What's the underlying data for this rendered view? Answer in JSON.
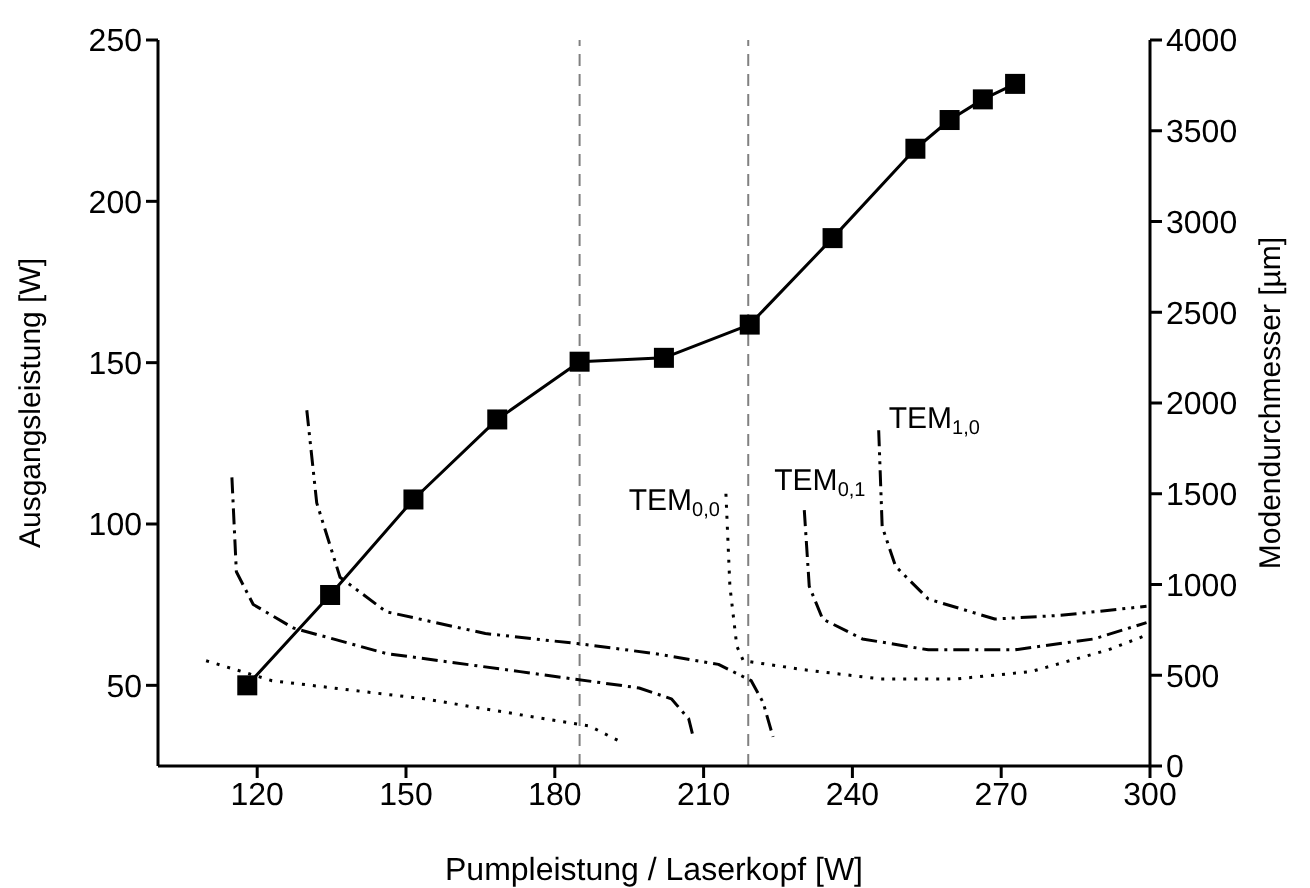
{
  "chart_data": {
    "type": "line",
    "xlabel": "Pumpleistung / Laserkopf [W]",
    "ylabel": "Ausgangsleistung [W]",
    "y2label": "Modendurchmesser [µm]",
    "xlim": [
      100,
      300
    ],
    "xticks": [
      120,
      150,
      180,
      210,
      240,
      270,
      300
    ],
    "ylim": [
      25,
      250
    ],
    "yticks": [
      50,
      100,
      150,
      200,
      250
    ],
    "y2lim": [
      0,
      4000
    ],
    "y2ticks": [
      0,
      500,
      1000,
      1500,
      2000,
      2500,
      3000,
      3500,
      4000
    ],
    "series": [
      {
        "color": "#000000",
        "marker": "square",
        "line_style": "solid",
        "x": [
          118,
          134.7,
          151.5,
          168.4,
          185,
          202,
          219.3,
          236,
          252.7,
          259.6,
          266.3,
          272.8
        ],
        "values": [
          50,
          78,
          107.6,
          132.4,
          150.3,
          151.5,
          161.8,
          188.6,
          216.3,
          225.2,
          231.6,
          236.4
        ]
      },
      {
        "color": "#000000",
        "axis": "y2",
        "marker": "none",
        "line_style": "dotted",
        "x": [
          109.7,
          123,
          153.7,
          178,
          187,
          192.8
        ],
        "values": [
          580,
          470,
          370,
          260,
          220,
          140
        ]
      },
      {
        "color": "#000000",
        "axis": "y2",
        "marker": "none",
        "line_style": "dashdot",
        "x": [
          114.9,
          115.8,
          119.2,
          127.3,
          146,
          173,
          197,
          203.5,
          207,
          208
        ],
        "values": [
          1590,
          1070,
          890,
          760,
          620,
          520,
          430,
          370,
          260,
          150
        ]
      },
      {
        "color": "#000000",
        "axis": "y2",
        "marker": "none",
        "line_style": "dashdotdot",
        "x": [
          130,
          132,
          136.7,
          146,
          166,
          186,
          200,
          213,
          219.6,
          222,
          224
        ],
        "values": [
          1960,
          1450,
          1040,
          850,
          730,
          670,
          620,
          560,
          470,
          350,
          160
        ]
      },
      {
        "color": "#000000",
        "axis": "y2",
        "marker": "none",
        "line_style": "dotted",
        "x": [
          214.5,
          215.3,
          216.7,
          218,
          230.3,
          245.6,
          261,
          276,
          291.6,
          299.2
        ],
        "values": [
          1500,
          990,
          660,
          580,
          530,
          480,
          480,
          520,
          640,
          720
        ]
      },
      {
        "color": "#000000",
        "axis": "y2",
        "marker": "none",
        "line_style": "dashdot",
        "x": [
          230.3,
          231.3,
          234,
          242,
          255.3,
          272.7,
          288.7,
          299.3
        ],
        "values": [
          1410,
          990,
          810,
          700,
          640,
          640,
          700,
          790
        ]
      },
      {
        "color": "#000000",
        "axis": "y2",
        "marker": "none",
        "line_style": "dashdotdot",
        "x": [
          245.3,
          246,
          248.7,
          255.3,
          268.7,
          282,
          299.3
        ],
        "values": [
          1850,
          1320,
          1100,
          920,
          810,
          830,
          880
        ]
      }
    ],
    "ref_lines": [
      {
        "axis": "x",
        "value": 185,
        "color": "#808080",
        "line_style": "dashed"
      },
      {
        "axis": "x",
        "value": 219,
        "color": "#808080",
        "line_style": "dashed"
      }
    ],
    "annotations": [
      "TEM$_{0,0}$",
      "TEM$_{0,1}$",
      "TEM$_{1,0}$"
    ]
  }
}
